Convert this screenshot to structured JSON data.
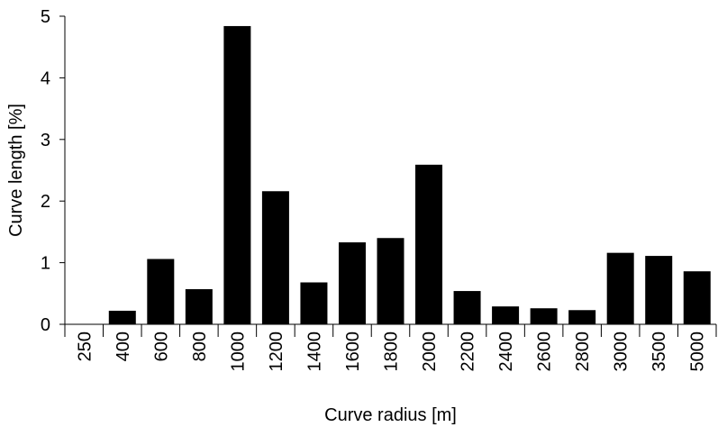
{
  "chart_data": {
    "type": "bar",
    "categories": [
      "250",
      "400",
      "600",
      "800",
      "1000",
      "1200",
      "1400",
      "1600",
      "1800",
      "2000",
      "2200",
      "2400",
      "2600",
      "2800",
      "3000",
      "3500",
      "5000"
    ],
    "values": [
      0,
      0.22,
      1.06,
      0.57,
      4.84,
      2.16,
      0.68,
      1.33,
      1.4,
      2.59,
      0.54,
      0.29,
      0.26,
      0.23,
      1.16,
      1.11,
      0.86
    ],
    "xlabel": "Curve radius [m]",
    "ylabel": "Curve length [%]",
    "ylim": [
      0,
      5
    ],
    "yticks": [
      "0",
      "1",
      "2",
      "3",
      "4",
      "5"
    ],
    "grid": false,
    "bar_color": "#000000"
  }
}
